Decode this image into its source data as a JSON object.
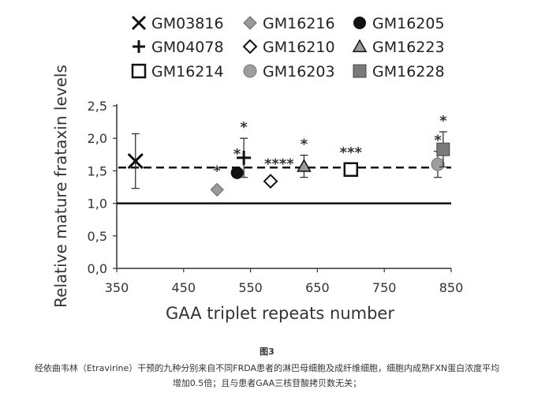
{
  "chart_data": {
    "type": "scatter",
    "xlabel": "GAA triplet repeats number",
    "ylabel": "Relative mature frataxin levels",
    "xlim": [
      350,
      850
    ],
    "ylim": [
      0,
      2.5
    ],
    "x_ticks": [
      "350",
      "450",
      "550",
      "650",
      "750",
      "850"
    ],
    "y_ticks": [
      "0,0",
      "0,5",
      "1,0",
      "1,5",
      "2,0",
      "2,5"
    ],
    "reference_line": {
      "y": 1.0,
      "style": "solid"
    },
    "mean_line": {
      "y": 1.55,
      "style": "dashed"
    },
    "legend_placement": "top",
    "series": [
      {
        "name": "GM03816",
        "marker": "x",
        "x": 378,
        "y": 1.65,
        "err": 0.42,
        "stars": ""
      },
      {
        "name": "GM16216",
        "marker": "diamond-gray",
        "x": 500,
        "y": 1.21,
        "err": 0,
        "stars": "*"
      },
      {
        "name": "GM16205",
        "marker": "circle-black",
        "x": 530,
        "y": 1.47,
        "err": 0,
        "stars": "*"
      },
      {
        "name": "GM04078",
        "marker": "plus",
        "x": 540,
        "y": 1.7,
        "err": 0.3,
        "stars": "*"
      },
      {
        "name": "GM16210",
        "marker": "diamond-open",
        "x": 580,
        "y": 1.34,
        "err": 0.05,
        "stars": "****"
      },
      {
        "name": "GM16223",
        "marker": "triangle-gray",
        "x": 630,
        "y": 1.57,
        "err": 0.17,
        "stars": "*"
      },
      {
        "name": "GM16214",
        "marker": "square-open",
        "x": 700,
        "y": 1.52,
        "err": 0.04,
        "stars": "***"
      },
      {
        "name": "GM16203",
        "marker": "circle-gray",
        "x": 830,
        "y": 1.6,
        "err": 0.2,
        "stars": "*"
      },
      {
        "name": "GM16228",
        "marker": "square-gray",
        "x": 838,
        "y": 1.83,
        "err": 0.27,
        "stars": "*"
      }
    ]
  },
  "caption": {
    "title": "图3",
    "line1": "经依曲韦林（Etravirine）干预的九种分别来自不同FRDA患者的淋巴母细胞及成纤维细胞，细胞内成熟FXN蛋白浓度平均",
    "line2": "增加0.5倍；且与患者GAA三核苷酸拷贝数无关；"
  }
}
